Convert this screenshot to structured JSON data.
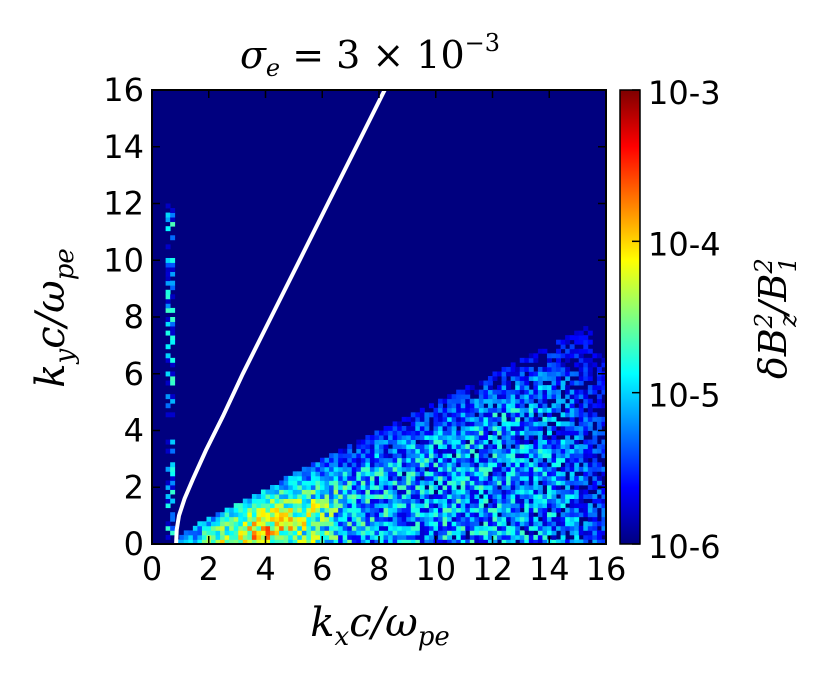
{
  "chart_data": {
    "type": "heatmap",
    "title": {
      "sym": "σ",
      "sub": "e",
      "eq": " = 3 × 10",
      "sup": "−3"
    },
    "xlabel": {
      "k": "k",
      "ksub": "x",
      "c": "c/ω",
      "csub": "pe"
    },
    "ylabel": {
      "k": "k",
      "ksub": "y",
      "c": "c/ω",
      "csub": "pe"
    },
    "xlim": [
      0,
      16
    ],
    "ylim": [
      0,
      16
    ],
    "xticks": [
      "0",
      "2",
      "4",
      "6",
      "8",
      "10",
      "12",
      "14",
      "16"
    ],
    "yticks": [
      "0",
      "2",
      "4",
      "6",
      "8",
      "10",
      "12",
      "14",
      "16"
    ],
    "colorbar": {
      "label": {
        "d": "δB",
        "dsup": "2",
        "dsub": "z",
        "b": "/B",
        "bsup": "2",
        "bsub": "1"
      },
      "scale": "log",
      "range": [
        1e-06,
        0.001
      ],
      "ticks": [
        {
          "value": 0.001,
          "label": "10-3"
        },
        {
          "value": 0.0001,
          "label": "10-4"
        },
        {
          "value": 1e-05,
          "label": "10-5"
        },
        {
          "value": 1e-06,
          "label": "10-6"
        }
      ],
      "colormap": "jet"
    },
    "curve": {
      "color": "#ffffff",
      "points": [
        [
          0.85,
          0
        ],
        [
          0.87,
          0.5
        ],
        [
          0.95,
          1.0
        ],
        [
          1.15,
          1.6
        ],
        [
          1.45,
          2.3
        ],
        [
          1.9,
          3.3
        ],
        [
          2.5,
          4.5
        ],
        [
          3.2,
          6.0
        ],
        [
          4.2,
          8.0
        ],
        [
          5.2,
          10.0
        ],
        [
          6.2,
          12.0
        ],
        [
          7.2,
          14.0
        ],
        [
          8.2,
          16.0
        ]
      ]
    },
    "grid": false
  }
}
